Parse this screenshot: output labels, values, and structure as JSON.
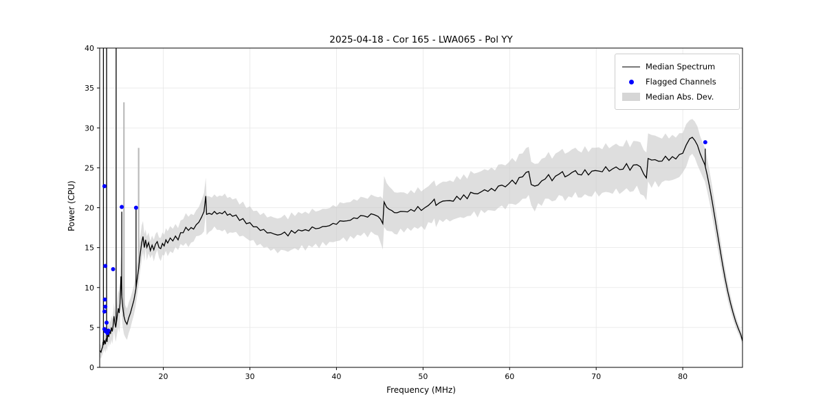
{
  "chart_data": {
    "type": "line",
    "title": "2025-04-18 - Cor 165 - LWA065 - Pol YY",
    "xlabel": "Frequency (MHz)",
    "ylabel": "Power (CPU)",
    "xlim": [
      12.65,
      86.9
    ],
    "ylim": [
      0,
      40
    ],
    "xticks": [
      20,
      30,
      40,
      50,
      60,
      70,
      80
    ],
    "yticks": [
      0,
      5,
      10,
      15,
      20,
      25,
      30,
      35,
      40
    ],
    "grid": true,
    "legend_position": "upper right",
    "legend_items": [
      {
        "label": "Median Spectrum",
        "type": "line",
        "color": "#000000"
      },
      {
        "label": "Flagged Channels",
        "type": "dot",
        "color": "#0000ff"
      },
      {
        "label": "Median Abs. Dev.",
        "type": "patch",
        "color": "#c8c8c8"
      }
    ],
    "series": [
      {
        "name": "Median Spectrum",
        "color": "#000000",
        "points": [
          [
            12.7,
            2.1
          ],
          [
            12.8,
            1.9
          ],
          [
            12.9,
            2.3
          ],
          [
            13.0,
            2.6
          ],
          [
            13.05,
            3.2
          ],
          [
            13.1,
            2.8
          ],
          [
            13.2,
            3.4
          ],
          [
            13.3,
            2.9
          ],
          [
            13.4,
            3.6
          ],
          [
            13.5,
            3.2
          ],
          [
            13.6,
            4.4
          ],
          [
            13.7,
            3.8
          ],
          [
            13.8,
            4.6
          ],
          [
            13.9,
            4.2
          ],
          [
            14.0,
            5.0
          ],
          [
            14.1,
            4.5
          ],
          [
            14.2,
            5.2
          ],
          [
            14.3,
            6.4
          ],
          [
            14.4,
            5.6
          ],
          [
            14.5,
            5.0
          ],
          [
            14.6,
            5.8
          ],
          [
            14.7,
            6.6
          ],
          [
            14.8,
            7.4
          ],
          [
            14.9,
            6.8
          ],
          [
            15.0,
            8.0
          ],
          [
            15.1,
            11.4
          ],
          [
            15.2,
            9.0
          ],
          [
            15.3,
            7.6
          ],
          [
            15.45,
            6.4
          ],
          [
            15.6,
            5.8
          ],
          [
            15.8,
            5.4
          ],
          [
            16.0,
            6.2
          ],
          [
            16.2,
            6.8
          ],
          [
            16.4,
            7.6
          ],
          [
            16.6,
            8.4
          ],
          [
            16.8,
            9.6
          ],
          [
            17.0,
            11.2
          ],
          [
            17.15,
            12.4
          ],
          [
            17.3,
            14.0
          ],
          [
            17.5,
            15.6
          ],
          [
            17.65,
            16.4
          ],
          [
            17.8,
            15.0
          ],
          [
            17.95,
            16.2
          ],
          [
            18.1,
            14.9
          ],
          [
            18.3,
            15.6
          ],
          [
            18.5,
            14.8
          ],
          [
            18.7,
            15.4
          ],
          [
            18.9,
            14.6
          ],
          [
            19.1,
            15.3
          ],
          [
            19.3,
            15.8
          ],
          [
            19.5,
            15.1
          ],
          [
            19.7,
            14.9
          ],
          [
            19.9,
            15.5
          ],
          [
            20.1,
            15.2
          ],
          [
            20.3,
            15.9
          ],
          [
            20.5,
            15.5
          ],
          [
            20.8,
            16.2
          ],
          [
            21.1,
            15.8
          ],
          [
            21.4,
            16.5
          ],
          [
            21.7,
            16.2
          ],
          [
            22.0,
            17.0
          ],
          [
            22.3,
            16.7
          ],
          [
            22.6,
            17.3
          ],
          [
            22.9,
            17.1
          ],
          [
            23.2,
            17.6
          ],
          [
            23.5,
            17.4
          ],
          [
            23.8,
            18.0
          ],
          [
            24.1,
            18.3
          ],
          [
            24.4,
            18.7
          ],
          [
            24.7,
            19.3
          ],
          [
            24.9,
            21.4
          ],
          [
            25.0,
            19.1
          ],
          [
            25.3,
            19.4
          ],
          [
            25.6,
            19.2
          ],
          [
            25.9,
            19.5
          ],
          [
            26.2,
            19.3
          ],
          [
            26.5,
            19.5
          ],
          [
            26.8,
            19.2
          ],
          [
            27.1,
            19.4
          ],
          [
            27.4,
            19.0
          ],
          [
            27.7,
            19.2
          ],
          [
            28.0,
            18.9
          ],
          [
            28.4,
            19.0
          ],
          [
            28.8,
            18.6
          ],
          [
            29.2,
            18.4
          ],
          [
            29.6,
            18.2
          ],
          [
            30.0,
            18.0
          ],
          [
            30.4,
            17.7
          ],
          [
            30.8,
            17.5
          ],
          [
            31.2,
            17.3
          ],
          [
            31.6,
            17.1
          ],
          [
            32.0,
            17.0
          ],
          [
            32.4,
            16.8
          ],
          [
            32.8,
            16.7
          ],
          [
            33.2,
            16.6
          ],
          [
            33.6,
            16.7
          ],
          [
            34.0,
            16.8
          ],
          [
            34.4,
            16.7
          ],
          [
            34.8,
            16.9
          ],
          [
            35.2,
            17.0
          ],
          [
            35.6,
            17.1
          ],
          [
            36.0,
            17.2
          ],
          [
            36.4,
            17.1
          ],
          [
            36.8,
            17.3
          ],
          [
            37.2,
            17.4
          ],
          [
            37.6,
            17.5
          ],
          [
            38.0,
            17.4
          ],
          [
            38.4,
            17.6
          ],
          [
            38.8,
            17.7
          ],
          [
            39.2,
            17.8
          ],
          [
            39.6,
            17.9
          ],
          [
            40.0,
            18.1
          ],
          [
            40.4,
            18.2
          ],
          [
            40.8,
            18.4
          ],
          [
            41.2,
            18.3
          ],
          [
            41.6,
            18.5
          ],
          [
            42.0,
            18.6
          ],
          [
            42.4,
            18.8
          ],
          [
            42.8,
            18.9
          ],
          [
            43.2,
            19.0
          ],
          [
            43.6,
            18.9
          ],
          [
            44.0,
            19.1
          ],
          [
            44.4,
            19.2
          ],
          [
            44.8,
            18.9
          ],
          [
            45.1,
            18.4
          ],
          [
            45.35,
            18.0
          ],
          [
            45.5,
            20.8
          ],
          [
            45.8,
            20.2
          ],
          [
            46.1,
            19.8
          ],
          [
            46.4,
            19.6
          ],
          [
            46.7,
            19.4
          ],
          [
            47.0,
            19.3
          ],
          [
            47.4,
            19.6
          ],
          [
            47.8,
            19.4
          ],
          [
            48.2,
            19.7
          ],
          [
            48.6,
            19.5
          ],
          [
            49.0,
            19.8
          ],
          [
            49.4,
            20.0
          ],
          [
            49.8,
            19.7
          ],
          [
            50.2,
            20.0
          ],
          [
            50.6,
            20.3
          ],
          [
            51.0,
            20.6
          ],
          [
            51.3,
            21.2
          ],
          [
            51.5,
            20.3
          ],
          [
            51.9,
            20.6
          ],
          [
            52.3,
            20.8
          ],
          [
            52.7,
            21.0
          ],
          [
            53.1,
            20.7
          ],
          [
            53.5,
            21.0
          ],
          [
            53.9,
            21.3
          ],
          [
            54.3,
            21.1
          ],
          [
            54.7,
            21.5
          ],
          [
            55.1,
            21.3
          ],
          [
            55.5,
            21.7
          ],
          [
            55.9,
            22.0
          ],
          [
            56.3,
            21.6
          ],
          [
            56.7,
            22.0
          ],
          [
            57.1,
            22.3
          ],
          [
            57.5,
            22.0
          ],
          [
            57.9,
            22.4
          ],
          [
            58.3,
            22.2
          ],
          [
            58.7,
            22.6
          ],
          [
            59.1,
            22.9
          ],
          [
            59.5,
            22.6
          ],
          [
            59.9,
            23.0
          ],
          [
            60.3,
            23.4
          ],
          [
            60.7,
            23.1
          ],
          [
            61.1,
            23.6
          ],
          [
            61.5,
            24.0
          ],
          [
            61.9,
            24.4
          ],
          [
            62.2,
            24.6
          ],
          [
            62.5,
            23.1
          ],
          [
            62.9,
            22.6
          ],
          [
            63.3,
            22.9
          ],
          [
            63.7,
            23.3
          ],
          [
            64.1,
            23.7
          ],
          [
            64.5,
            24.0
          ],
          [
            64.9,
            23.5
          ],
          [
            65.3,
            23.9
          ],
          [
            65.7,
            24.2
          ],
          [
            66.1,
            24.5
          ],
          [
            66.4,
            23.8
          ],
          [
            66.8,
            24.1
          ],
          [
            67.2,
            24.4
          ],
          [
            67.6,
            24.7
          ],
          [
            67.9,
            24.0
          ],
          [
            68.3,
            24.3
          ],
          [
            68.7,
            24.6
          ],
          [
            69.1,
            24.2
          ],
          [
            69.5,
            24.5
          ],
          [
            69.9,
            24.8
          ],
          [
            70.3,
            24.4
          ],
          [
            70.7,
            24.7
          ],
          [
            71.1,
            25.0
          ],
          [
            71.5,
            24.6
          ],
          [
            71.9,
            24.9
          ],
          [
            72.3,
            25.1
          ],
          [
            72.7,
            24.7
          ],
          [
            73.1,
            25.0
          ],
          [
            73.5,
            25.3
          ],
          [
            73.9,
            24.9
          ],
          [
            74.3,
            25.2
          ],
          [
            74.7,
            25.5
          ],
          [
            75.1,
            25.0
          ],
          [
            75.5,
            24.4
          ],
          [
            75.8,
            23.7
          ],
          [
            76.0,
            26.3
          ],
          [
            76.4,
            25.9
          ],
          [
            76.8,
            26.1
          ],
          [
            77.2,
            25.7
          ],
          [
            77.6,
            26.0
          ],
          [
            78.0,
            26.3
          ],
          [
            78.4,
            26.0
          ],
          [
            78.8,
            26.4
          ],
          [
            79.2,
            26.1
          ],
          [
            79.6,
            26.6
          ],
          [
            80.0,
            27.0
          ],
          [
            80.4,
            27.6
          ],
          [
            80.8,
            28.9
          ],
          [
            81.1,
            29.0
          ],
          [
            81.4,
            28.3
          ],
          [
            81.7,
            27.6
          ],
          [
            82.0,
            26.8
          ],
          [
            82.3,
            26.0
          ],
          [
            82.55,
            25.4
          ],
          [
            82.8,
            24.2
          ],
          [
            83.1,
            22.6
          ],
          [
            83.4,
            20.8
          ],
          [
            83.7,
            18.8
          ],
          [
            84.0,
            16.8
          ],
          [
            84.3,
            14.8
          ],
          [
            84.6,
            12.9
          ],
          [
            84.9,
            11.1
          ],
          [
            85.2,
            9.5
          ],
          [
            85.5,
            8.1
          ],
          [
            85.8,
            6.9
          ],
          [
            86.1,
            5.8
          ],
          [
            86.4,
            4.9
          ],
          [
            86.7,
            4.1
          ],
          [
            86.9,
            3.3
          ]
        ]
      }
    ],
    "black_spikes": [
      [
        13.08,
        42
      ],
      [
        13.45,
        42
      ],
      [
        14.55,
        42
      ],
      [
        15.2,
        19.5
      ],
      [
        16.85,
        19.8
      ],
      [
        82.6,
        27.4
      ]
    ],
    "gray_spikes": [
      [
        15.45,
        33.2
      ],
      [
        17.15,
        27.5
      ]
    ],
    "mad_band": {
      "color": "#c8c8c8",
      "alpha": 0.6,
      "halfwidth_anchors": [
        [
          12.7,
          0.8
        ],
        [
          13.5,
          1.2
        ],
        [
          14.5,
          1.8
        ],
        [
          15.1,
          2.8
        ],
        [
          15.6,
          2.0
        ],
        [
          16.5,
          1.8
        ],
        [
          17.5,
          2.2
        ],
        [
          18.0,
          1.3
        ],
        [
          19.0,
          1.2
        ],
        [
          20.0,
          1.4
        ],
        [
          21.0,
          1.5
        ],
        [
          22.0,
          1.6
        ],
        [
          23.0,
          1.7
        ],
        [
          24.0,
          1.9
        ],
        [
          24.9,
          2.3
        ],
        [
          25.5,
          2.1
        ],
        [
          26.5,
          2.2
        ],
        [
          28.0,
          2.1
        ],
        [
          30.0,
          2.0
        ],
        [
          32.0,
          2.0
        ],
        [
          33.5,
          2.1
        ],
        [
          35.0,
          2.2
        ],
        [
          37.0,
          2.2
        ],
        [
          39.0,
          2.2
        ],
        [
          41.0,
          2.3
        ],
        [
          43.0,
          2.3
        ],
        [
          44.8,
          2.4
        ],
        [
          45.5,
          3.3
        ],
        [
          46.5,
          2.6
        ],
        [
          48.0,
          2.3
        ],
        [
          50.0,
          2.4
        ],
        [
          52.0,
          2.4
        ],
        [
          54.0,
          2.5
        ],
        [
          56.0,
          2.6
        ],
        [
          58.0,
          2.6
        ],
        [
          60.0,
          2.7
        ],
        [
          62.2,
          3.1
        ],
        [
          63.0,
          2.7
        ],
        [
          65.0,
          2.8
        ],
        [
          67.0,
          2.9
        ],
        [
          69.0,
          2.9
        ],
        [
          71.0,
          2.9
        ],
        [
          73.0,
          2.9
        ],
        [
          75.0,
          3.0
        ],
        [
          76.0,
          3.2
        ],
        [
          78.0,
          2.8
        ],
        [
          80.0,
          2.6
        ],
        [
          81.0,
          2.4
        ],
        [
          82.0,
          2.2
        ],
        [
          83.0,
          2.0
        ],
        [
          84.0,
          1.7
        ],
        [
          85.0,
          1.2
        ],
        [
          86.0,
          0.8
        ],
        [
          86.9,
          0.5
        ]
      ]
    },
    "flagged_channels": {
      "color": "#0000ff",
      "points": [
        [
          13.2,
          22.7
        ],
        [
          13.3,
          12.7
        ],
        [
          14.2,
          12.3
        ],
        [
          13.25,
          8.5
        ],
        [
          13.3,
          7.6
        ],
        [
          13.2,
          7.0
        ],
        [
          13.45,
          5.6
        ],
        [
          13.2,
          4.8
        ],
        [
          13.35,
          4.5
        ],
        [
          13.55,
          4.3
        ],
        [
          13.65,
          4.6
        ],
        [
          15.2,
          20.1
        ],
        [
          16.85,
          20.0
        ],
        [
          82.6,
          28.2
        ]
      ]
    },
    "colors": {
      "grid": "#e6e6e6",
      "spine": "#000000",
      "background": "#ffffff"
    }
  }
}
